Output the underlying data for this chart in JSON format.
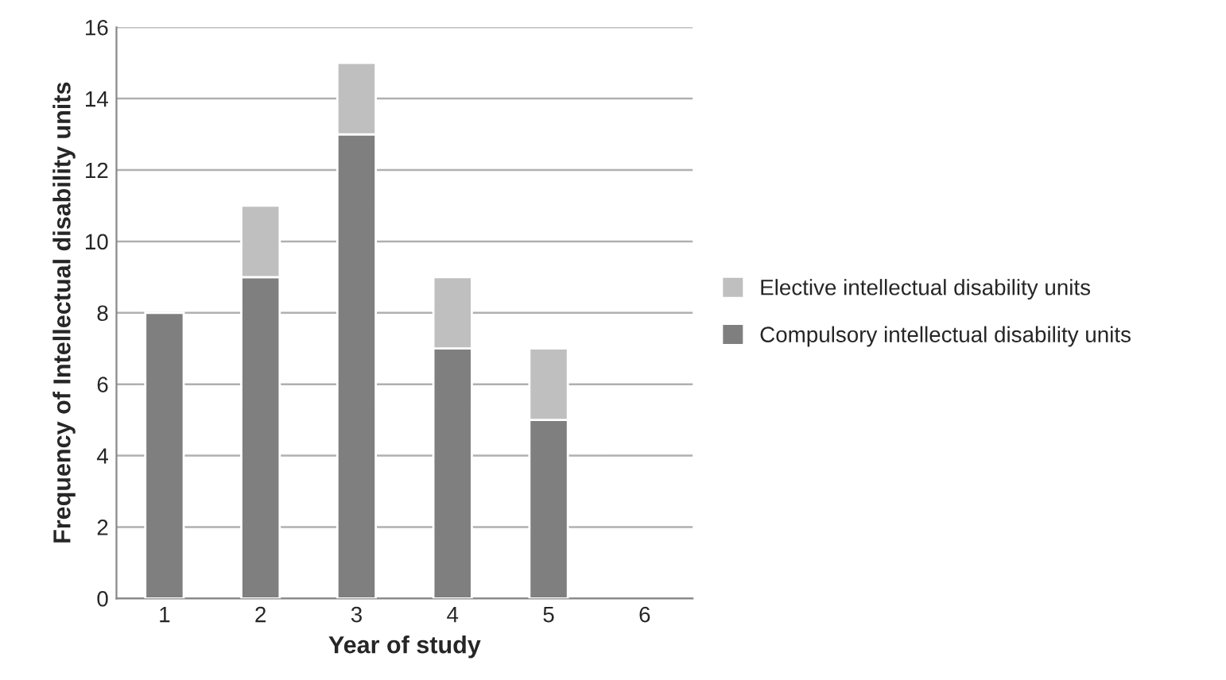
{
  "chart_data": {
    "type": "bar",
    "stacked": true,
    "xlabel": "Year of study",
    "ylabel": "Frequency of Intellectual disability units",
    "categories": [
      "1",
      "2",
      "3",
      "4",
      "5",
      "6"
    ],
    "series": [
      {
        "name": "Compulsory intellectual disability units",
        "color": "#7f7f7f",
        "values": [
          8,
          9,
          13,
          7,
          5,
          null
        ]
      },
      {
        "name": "Elective intellectual disability units",
        "color": "#bfbfbf",
        "values": [
          null,
          2,
          2,
          2,
          2,
          null
        ]
      }
    ],
    "ylim": [
      0,
      16
    ],
    "yticks": [
      0,
      2,
      4,
      6,
      8,
      10,
      12,
      14,
      16
    ],
    "grid": "y",
    "legend": "right"
  }
}
